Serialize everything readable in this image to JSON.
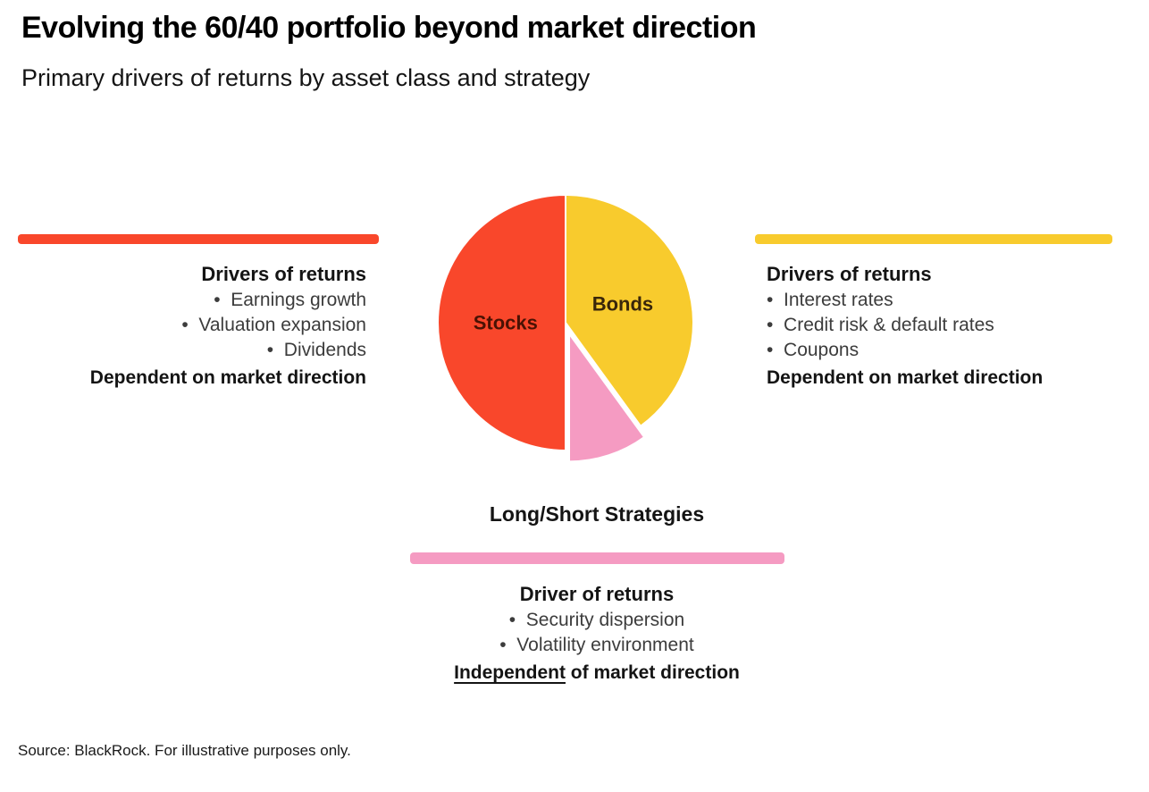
{
  "page": {
    "title": "Evolving the 60/40 portfolio beyond market direction",
    "subtitle": "Primary drivers of returns by asset class and strategy",
    "source": "Source: BlackRock. For illustrative purposes only."
  },
  "left_panel": {
    "heading": "Drivers of returns",
    "bullets": [
      "Earnings growth",
      "Valuation expansion",
      "Dividends"
    ],
    "footnote": "Dependent on market direction"
  },
  "right_panel": {
    "heading": "Drivers of returns",
    "bullets": [
      "Interest rates",
      "Credit risk & default rates",
      "Coupons"
    ],
    "footnote": "Dependent on market direction"
  },
  "bottom_panel": {
    "heading": "Long/Short Strategies",
    "subheading": "Driver of returns",
    "bullets": [
      "Security dispersion",
      "Volatility environment"
    ],
    "footnote_underlined": "Independent",
    "footnote_rest": " of market direction"
  },
  "chart_data": {
    "type": "pie",
    "start_angle_deg": 0,
    "direction": "clockwise",
    "legend_position": "none",
    "slices": [
      {
        "label": "Bonds",
        "value": 40,
        "color": "#F8CB2D",
        "label_color": "#39260A"
      },
      {
        "label": "Long/Short Strategies",
        "value": 10,
        "color": "#F59BC2",
        "exploded": true
      },
      {
        "label": "Stocks",
        "value": 50,
        "color": "#F9472B",
        "label_color": "#4A1204"
      }
    ]
  }
}
